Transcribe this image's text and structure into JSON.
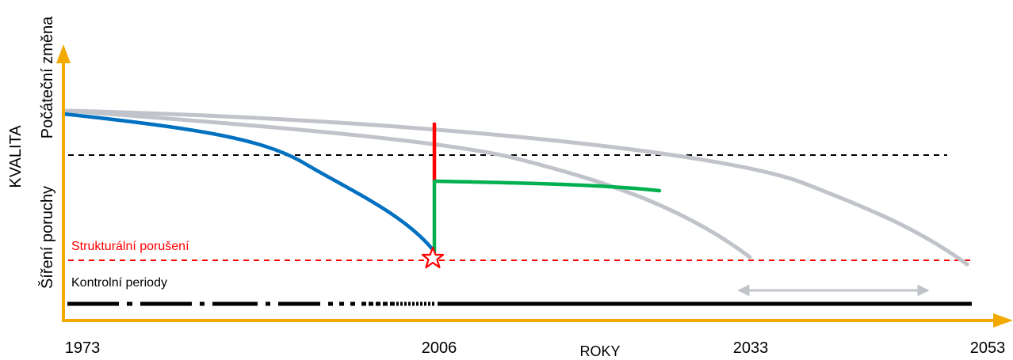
{
  "labels": {
    "y_axis_main": "KVALITA",
    "y_axis_top": "Počáteční změna",
    "y_axis_bottom": "Šíření poruchy",
    "structural_failure": "Strukturální porušení",
    "inspection_periods": "Kontrolní periody",
    "x_axis": "ROKY"
  },
  "x_ticks": [
    "1973",
    "2006",
    "2033",
    "2053"
  ],
  "colors": {
    "axis": "#f2a900",
    "deterioration_curve": "#0070c0",
    "intervention": "#ff0000",
    "after_repair_curve": "#00b050",
    "alternative_curves": "#c0c4ca",
    "threshold_initial": "#000000",
    "threshold_failure": "#ff0000"
  },
  "icons": {
    "failure_point": "star-icon",
    "period_range": "double-arrow-icon"
  }
}
